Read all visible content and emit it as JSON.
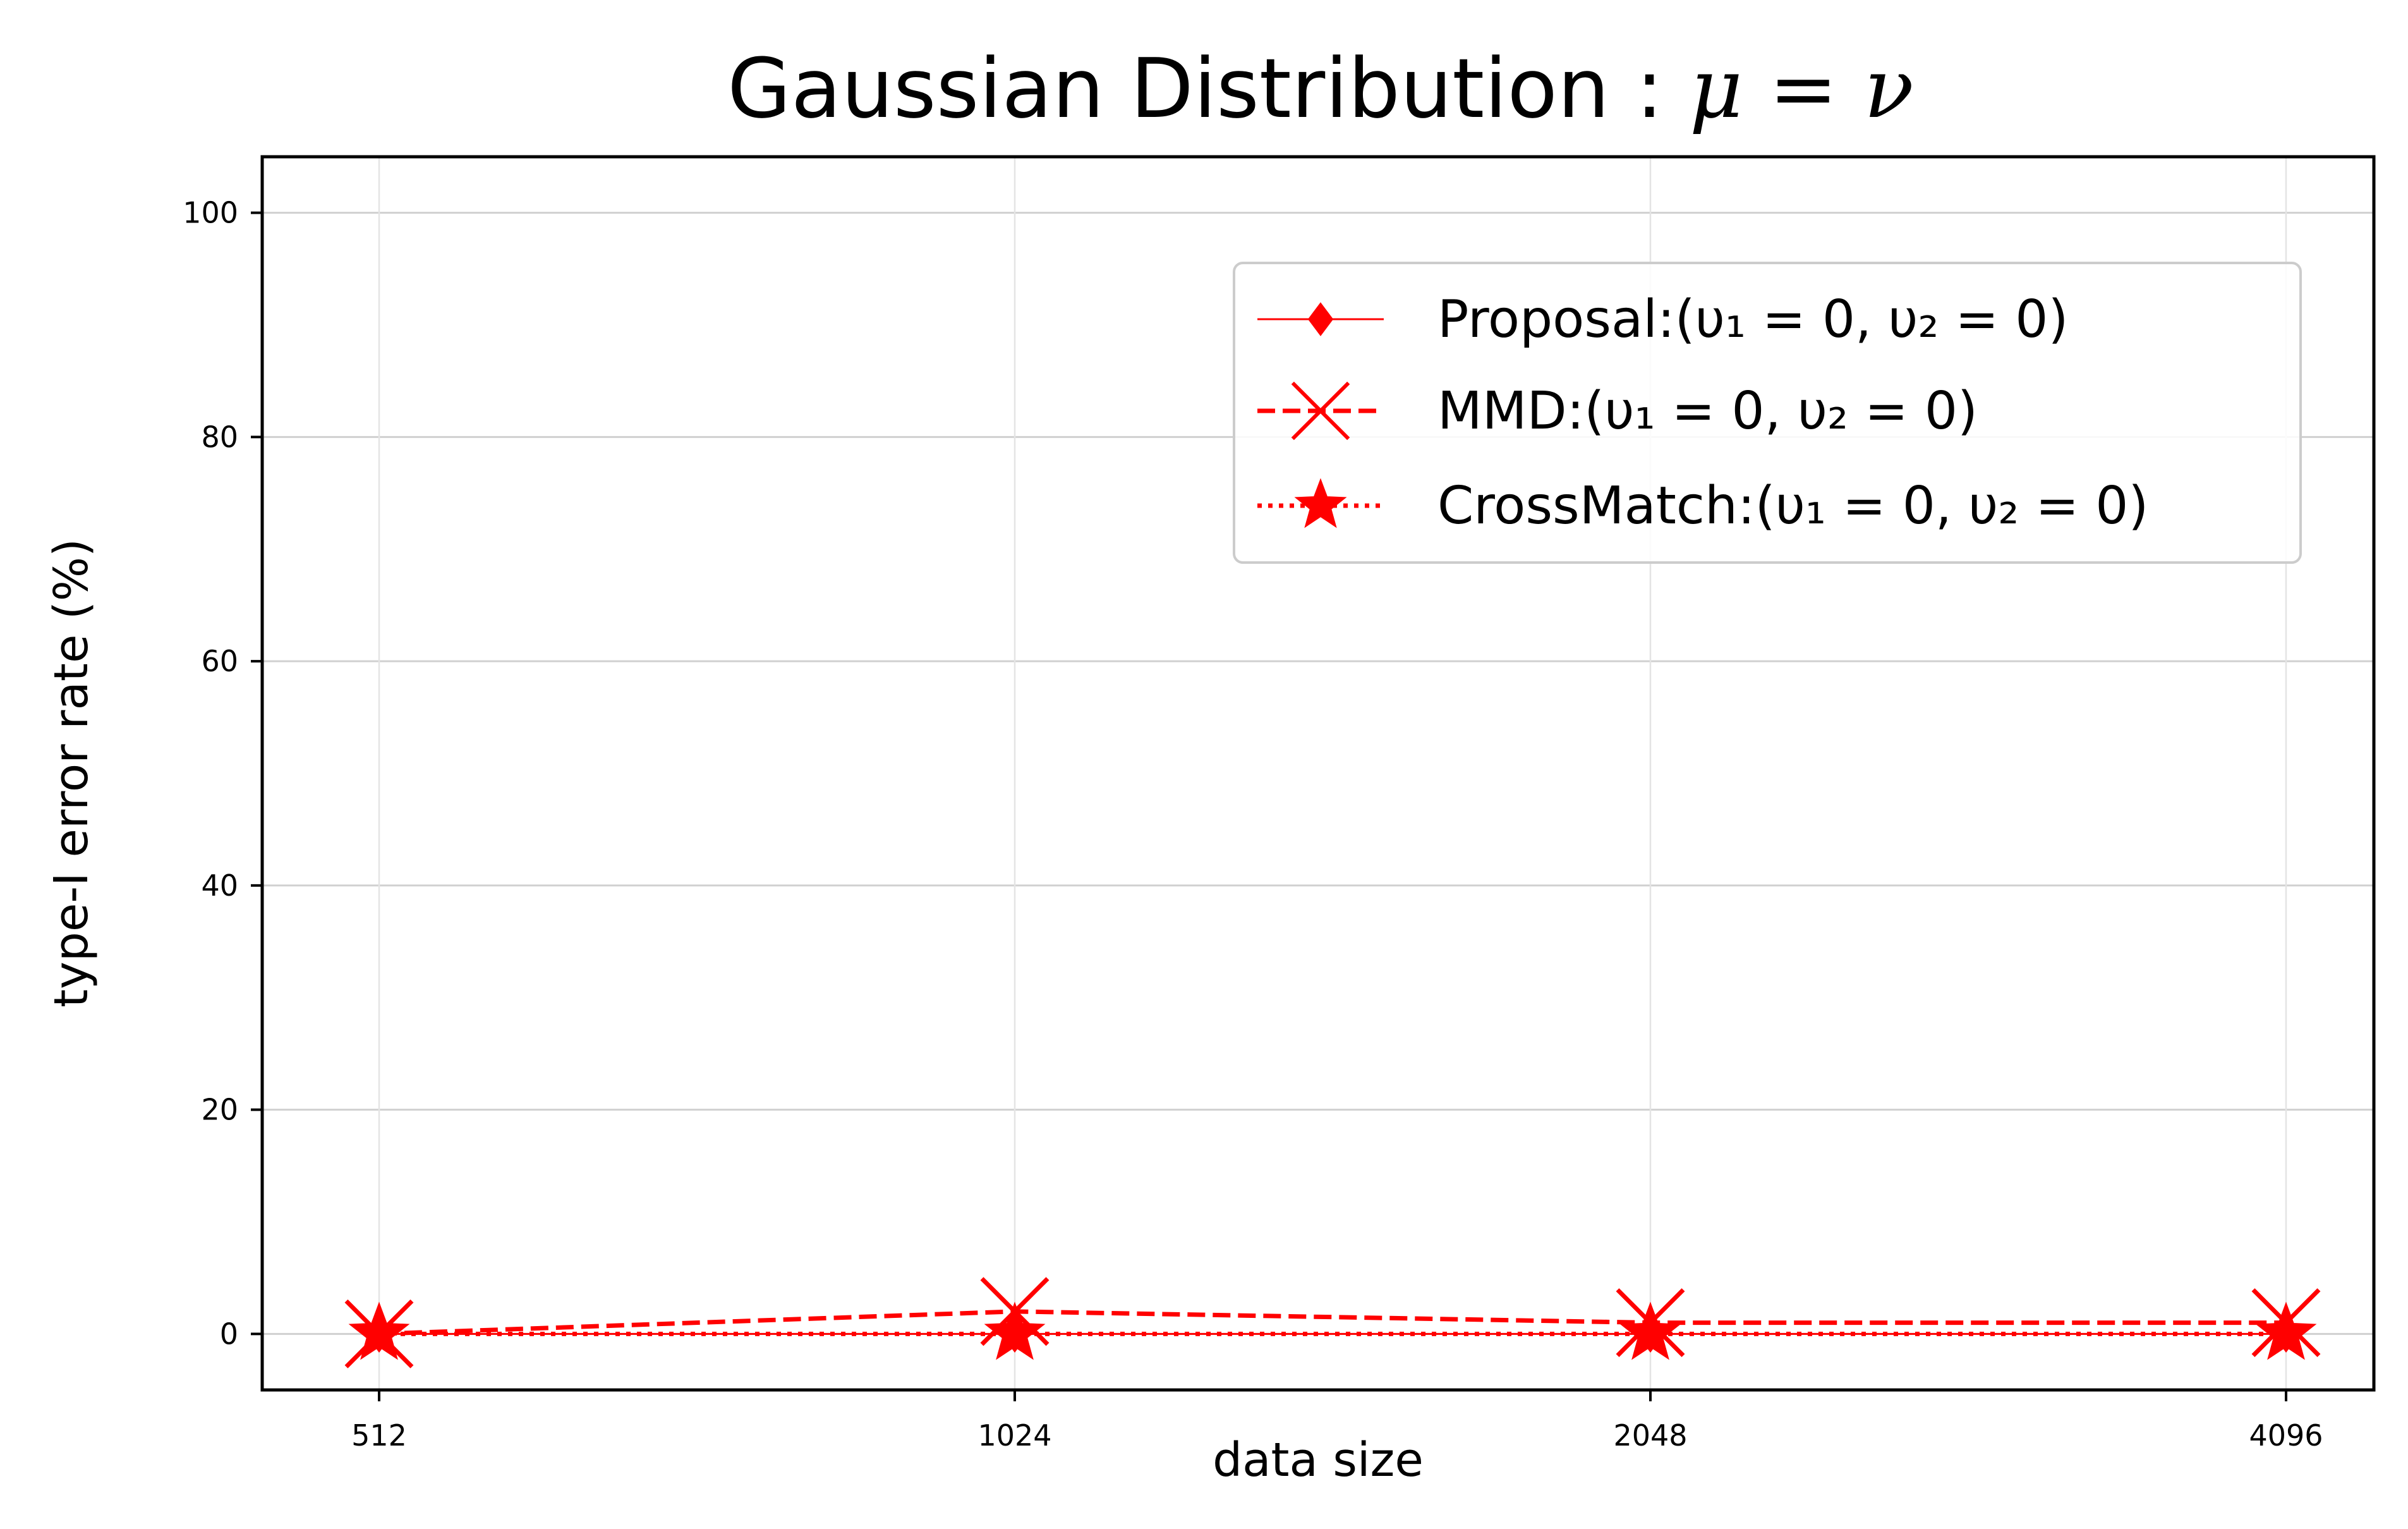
{
  "chart_data": {
    "type": "line",
    "title": {
      "text": "Gaussian Distribution : ",
      "math": "μ = ν"
    },
    "xlabel": "data size",
    "ylabel": "type-I error rate (%)",
    "categories": [
      "512",
      "1024",
      "2048",
      "4096"
    ],
    "x_scale": "categorical (evenly spaced)",
    "ylim": [
      -5,
      105
    ],
    "yticks": [
      0,
      20,
      40,
      60,
      80,
      100
    ],
    "grid": true,
    "legend_position": "top-right",
    "series": [
      {
        "name": "Proposal:(υ₁ = 0, υ₂ = 0)",
        "values": [
          0,
          0,
          0,
          0
        ],
        "color": "#ff0000",
        "linestyle": "solid",
        "marker": "diamond"
      },
      {
        "name": "MMD:(υ₁ = 0, υ₂ = 0)",
        "values": [
          0,
          2,
          1,
          1
        ],
        "color": "#ff0000",
        "linestyle": "dashed",
        "marker": "x"
      },
      {
        "name": "CrossMatch:(υ₁ = 0, υ₂ = 0)",
        "values": [
          0,
          0,
          0,
          0
        ],
        "color": "#ff0000",
        "linestyle": "dotted",
        "marker": "star"
      }
    ]
  }
}
